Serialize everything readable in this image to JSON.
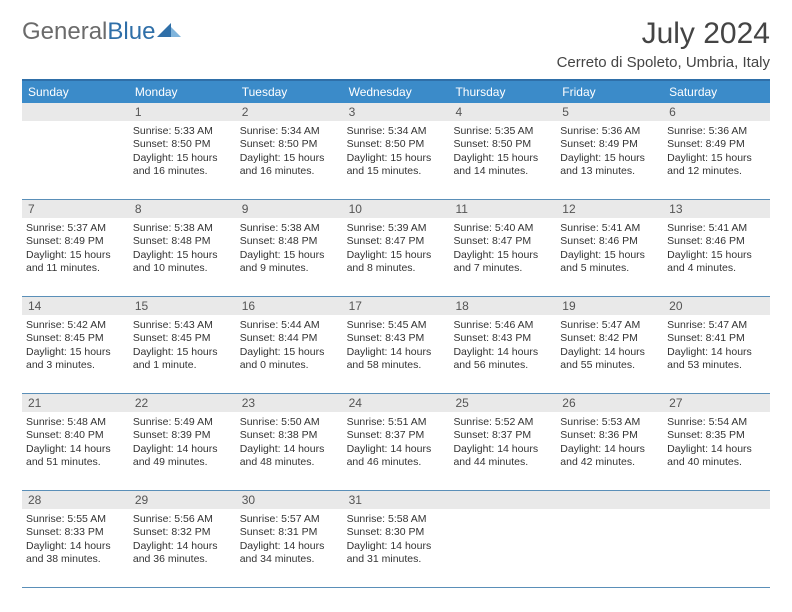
{
  "logo": {
    "gray": "General",
    "blue": "Blue"
  },
  "title": "July 2024",
  "location": "Cerreto di Spoleto, Umbria, Italy",
  "colors": {
    "header_bg": "#3b8bc9",
    "header_text": "#ffffff",
    "row_divider": "#5a8fb8",
    "daynum_bg": "#e9e9e9",
    "daynum_text": "#555555",
    "body_text": "#333333",
    "top_border": "#2f6fa8",
    "logo_gray": "#6b6b6b",
    "logo_blue": "#2f6fa8",
    "title_color": "#444444",
    "background": "#ffffff"
  },
  "fonts": {
    "title_size_pt": 22,
    "location_size_pt": 11,
    "weekday_size_pt": 9,
    "daynum_size_pt": 9,
    "cell_size_pt": 8
  },
  "weekdays": [
    "Sunday",
    "Monday",
    "Tuesday",
    "Wednesday",
    "Thursday",
    "Friday",
    "Saturday"
  ],
  "weeks": [
    {
      "nums": [
        "",
        "1",
        "2",
        "3",
        "4",
        "5",
        "6"
      ],
      "cells": [
        {
          "sunrise": "",
          "sunset": "",
          "daylight": ""
        },
        {
          "sunrise": "Sunrise: 5:33 AM",
          "sunset": "Sunset: 8:50 PM",
          "daylight": "Daylight: 15 hours and 16 minutes."
        },
        {
          "sunrise": "Sunrise: 5:34 AM",
          "sunset": "Sunset: 8:50 PM",
          "daylight": "Daylight: 15 hours and 16 minutes."
        },
        {
          "sunrise": "Sunrise: 5:34 AM",
          "sunset": "Sunset: 8:50 PM",
          "daylight": "Daylight: 15 hours and 15 minutes."
        },
        {
          "sunrise": "Sunrise: 5:35 AM",
          "sunset": "Sunset: 8:50 PM",
          "daylight": "Daylight: 15 hours and 14 minutes."
        },
        {
          "sunrise": "Sunrise: 5:36 AM",
          "sunset": "Sunset: 8:49 PM",
          "daylight": "Daylight: 15 hours and 13 minutes."
        },
        {
          "sunrise": "Sunrise: 5:36 AM",
          "sunset": "Sunset: 8:49 PM",
          "daylight": "Daylight: 15 hours and 12 minutes."
        }
      ]
    },
    {
      "nums": [
        "7",
        "8",
        "9",
        "10",
        "11",
        "12",
        "13"
      ],
      "cells": [
        {
          "sunrise": "Sunrise: 5:37 AM",
          "sunset": "Sunset: 8:49 PM",
          "daylight": "Daylight: 15 hours and 11 minutes."
        },
        {
          "sunrise": "Sunrise: 5:38 AM",
          "sunset": "Sunset: 8:48 PM",
          "daylight": "Daylight: 15 hours and 10 minutes."
        },
        {
          "sunrise": "Sunrise: 5:38 AM",
          "sunset": "Sunset: 8:48 PM",
          "daylight": "Daylight: 15 hours and 9 minutes."
        },
        {
          "sunrise": "Sunrise: 5:39 AM",
          "sunset": "Sunset: 8:47 PM",
          "daylight": "Daylight: 15 hours and 8 minutes."
        },
        {
          "sunrise": "Sunrise: 5:40 AM",
          "sunset": "Sunset: 8:47 PM",
          "daylight": "Daylight: 15 hours and 7 minutes."
        },
        {
          "sunrise": "Sunrise: 5:41 AM",
          "sunset": "Sunset: 8:46 PM",
          "daylight": "Daylight: 15 hours and 5 minutes."
        },
        {
          "sunrise": "Sunrise: 5:41 AM",
          "sunset": "Sunset: 8:46 PM",
          "daylight": "Daylight: 15 hours and 4 minutes."
        }
      ]
    },
    {
      "nums": [
        "14",
        "15",
        "16",
        "17",
        "18",
        "19",
        "20"
      ],
      "cells": [
        {
          "sunrise": "Sunrise: 5:42 AM",
          "sunset": "Sunset: 8:45 PM",
          "daylight": "Daylight: 15 hours and 3 minutes."
        },
        {
          "sunrise": "Sunrise: 5:43 AM",
          "sunset": "Sunset: 8:45 PM",
          "daylight": "Daylight: 15 hours and 1 minute."
        },
        {
          "sunrise": "Sunrise: 5:44 AM",
          "sunset": "Sunset: 8:44 PM",
          "daylight": "Daylight: 15 hours and 0 minutes."
        },
        {
          "sunrise": "Sunrise: 5:45 AM",
          "sunset": "Sunset: 8:43 PM",
          "daylight": "Daylight: 14 hours and 58 minutes."
        },
        {
          "sunrise": "Sunrise: 5:46 AM",
          "sunset": "Sunset: 8:43 PM",
          "daylight": "Daylight: 14 hours and 56 minutes."
        },
        {
          "sunrise": "Sunrise: 5:47 AM",
          "sunset": "Sunset: 8:42 PM",
          "daylight": "Daylight: 14 hours and 55 minutes."
        },
        {
          "sunrise": "Sunrise: 5:47 AM",
          "sunset": "Sunset: 8:41 PM",
          "daylight": "Daylight: 14 hours and 53 minutes."
        }
      ]
    },
    {
      "nums": [
        "21",
        "22",
        "23",
        "24",
        "25",
        "26",
        "27"
      ],
      "cells": [
        {
          "sunrise": "Sunrise: 5:48 AM",
          "sunset": "Sunset: 8:40 PM",
          "daylight": "Daylight: 14 hours and 51 minutes."
        },
        {
          "sunrise": "Sunrise: 5:49 AM",
          "sunset": "Sunset: 8:39 PM",
          "daylight": "Daylight: 14 hours and 49 minutes."
        },
        {
          "sunrise": "Sunrise: 5:50 AM",
          "sunset": "Sunset: 8:38 PM",
          "daylight": "Daylight: 14 hours and 48 minutes."
        },
        {
          "sunrise": "Sunrise: 5:51 AM",
          "sunset": "Sunset: 8:37 PM",
          "daylight": "Daylight: 14 hours and 46 minutes."
        },
        {
          "sunrise": "Sunrise: 5:52 AM",
          "sunset": "Sunset: 8:37 PM",
          "daylight": "Daylight: 14 hours and 44 minutes."
        },
        {
          "sunrise": "Sunrise: 5:53 AM",
          "sunset": "Sunset: 8:36 PM",
          "daylight": "Daylight: 14 hours and 42 minutes."
        },
        {
          "sunrise": "Sunrise: 5:54 AM",
          "sunset": "Sunset: 8:35 PM",
          "daylight": "Daylight: 14 hours and 40 minutes."
        }
      ]
    },
    {
      "nums": [
        "28",
        "29",
        "30",
        "31",
        "",
        "",
        ""
      ],
      "cells": [
        {
          "sunrise": "Sunrise: 5:55 AM",
          "sunset": "Sunset: 8:33 PM",
          "daylight": "Daylight: 14 hours and 38 minutes."
        },
        {
          "sunrise": "Sunrise: 5:56 AM",
          "sunset": "Sunset: 8:32 PM",
          "daylight": "Daylight: 14 hours and 36 minutes."
        },
        {
          "sunrise": "Sunrise: 5:57 AM",
          "sunset": "Sunset: 8:31 PM",
          "daylight": "Daylight: 14 hours and 34 minutes."
        },
        {
          "sunrise": "Sunrise: 5:58 AM",
          "sunset": "Sunset: 8:30 PM",
          "daylight": "Daylight: 14 hours and 31 minutes."
        },
        {
          "sunrise": "",
          "sunset": "",
          "daylight": ""
        },
        {
          "sunrise": "",
          "sunset": "",
          "daylight": ""
        },
        {
          "sunrise": "",
          "sunset": "",
          "daylight": ""
        }
      ]
    }
  ]
}
